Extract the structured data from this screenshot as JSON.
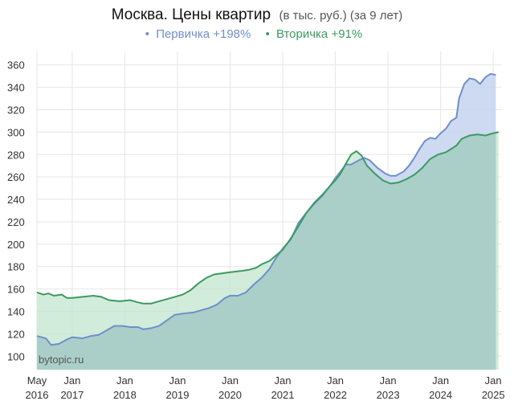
{
  "title": {
    "main": "Москва. Цены квартир",
    "sub": "(в тыс. руб.) (за 9 лет)"
  },
  "legend": [
    {
      "bullet": "•",
      "label": "Первичка +198%",
      "color": "#6f8fca"
    },
    {
      "bullet": "•",
      "label": "Вторичка +91%",
      "color": "#3c9a5f"
    }
  ],
  "watermark": "bytopic.ru",
  "colors": {
    "primary_line": "#6f8fca",
    "primary_fill": "#c5d3f0",
    "secondary_line": "#3c9a5f",
    "secondary_fill": "#c3e6cf",
    "overlap_fill": "#a9cfc8",
    "grid": "#e6e6e6"
  },
  "chart_data": {
    "type": "area",
    "title": "Москва. Цены квартир (в тыс. руб.) (за 9 лет)",
    "xlim": [
      2016.33,
      2025.15
    ],
    "ylim": [
      88,
      372
    ],
    "y_ticks": [
      100,
      120,
      140,
      160,
      180,
      200,
      220,
      240,
      260,
      280,
      300,
      320,
      340,
      360
    ],
    "x_ticks": [
      {
        "x": 2016.33,
        "top": "May",
        "bottom": "2016"
      },
      {
        "x": 2017.0,
        "top": "Jan",
        "bottom": "2017"
      },
      {
        "x": 2018.0,
        "top": "Jan",
        "bottom": "2018"
      },
      {
        "x": 2019.0,
        "top": "Jan",
        "bottom": "2019"
      },
      {
        "x": 2020.0,
        "top": "Jan",
        "bottom": "2020"
      },
      {
        "x": 2021.0,
        "top": "Jan",
        "bottom": "2021"
      },
      {
        "x": 2022.0,
        "top": "Jan",
        "bottom": "2022"
      },
      {
        "x": 2023.0,
        "top": "Jan",
        "bottom": "2023"
      },
      {
        "x": 2024.0,
        "top": "Jan",
        "bottom": "2024"
      },
      {
        "x": 2025.0,
        "top": "Jan",
        "bottom": "2025"
      }
    ],
    "grid": true,
    "legend_position": "top-center",
    "series": [
      {
        "name": "Первичка +198%",
        "points": [
          [
            2016.33,
            118
          ],
          [
            2016.5,
            116
          ],
          [
            2016.6,
            110
          ],
          [
            2016.75,
            111
          ],
          [
            2016.9,
            115
          ],
          [
            2017.0,
            117
          ],
          [
            2017.2,
            116
          ],
          [
            2017.35,
            118
          ],
          [
            2017.5,
            119
          ],
          [
            2017.65,
            123
          ],
          [
            2017.8,
            127
          ],
          [
            2017.95,
            127
          ],
          [
            2018.1,
            126
          ],
          [
            2018.25,
            126
          ],
          [
            2018.35,
            124
          ],
          [
            2018.5,
            125
          ],
          [
            2018.65,
            127
          ],
          [
            2018.8,
            132
          ],
          [
            2018.95,
            137
          ],
          [
            2019.1,
            138
          ],
          [
            2019.3,
            139
          ],
          [
            2019.45,
            141
          ],
          [
            2019.6,
            143
          ],
          [
            2019.75,
            146
          ],
          [
            2019.9,
            152
          ],
          [
            2020.0,
            154
          ],
          [
            2020.15,
            154
          ],
          [
            2020.3,
            157
          ],
          [
            2020.45,
            164
          ],
          [
            2020.6,
            170
          ],
          [
            2020.75,
            178
          ],
          [
            2020.85,
            186
          ],
          [
            2021.0,
            196
          ],
          [
            2021.15,
            204
          ],
          [
            2021.3,
            219
          ],
          [
            2021.45,
            228
          ],
          [
            2021.6,
            236
          ],
          [
            2021.75,
            243
          ],
          [
            2021.9,
            252
          ],
          [
            2022.0,
            259
          ],
          [
            2022.1,
            265
          ],
          [
            2022.2,
            271
          ],
          [
            2022.3,
            271
          ],
          [
            2022.45,
            275
          ],
          [
            2022.55,
            277
          ],
          [
            2022.65,
            275
          ],
          [
            2022.8,
            268
          ],
          [
            2022.95,
            263
          ],
          [
            2023.05,
            261
          ],
          [
            2023.15,
            261
          ],
          [
            2023.3,
            265
          ],
          [
            2023.4,
            270
          ],
          [
            2023.5,
            277
          ],
          [
            2023.6,
            285
          ],
          [
            2023.7,
            292
          ],
          [
            2023.8,
            295
          ],
          [
            2023.9,
            294
          ],
          [
            2024.0,
            299
          ],
          [
            2024.1,
            303
          ],
          [
            2024.2,
            310
          ],
          [
            2024.3,
            313
          ],
          [
            2024.35,
            330
          ],
          [
            2024.45,
            343
          ],
          [
            2024.55,
            348
          ],
          [
            2024.65,
            347
          ],
          [
            2024.75,
            343
          ],
          [
            2024.85,
            349
          ],
          [
            2024.95,
            352
          ],
          [
            2025.05,
            351
          ]
        ]
      },
      {
        "name": "Вторичка +91%",
        "points": [
          [
            2016.33,
            157
          ],
          [
            2016.45,
            155
          ],
          [
            2016.55,
            156
          ],
          [
            2016.65,
            154
          ],
          [
            2016.8,
            155
          ],
          [
            2016.9,
            152
          ],
          [
            2017.0,
            152
          ],
          [
            2017.2,
            153
          ],
          [
            2017.4,
            154
          ],
          [
            2017.55,
            153
          ],
          [
            2017.7,
            150
          ],
          [
            2017.9,
            149
          ],
          [
            2018.1,
            150
          ],
          [
            2018.25,
            148
          ],
          [
            2018.35,
            147
          ],
          [
            2018.5,
            147
          ],
          [
            2018.65,
            149
          ],
          [
            2018.8,
            151
          ],
          [
            2018.95,
            153
          ],
          [
            2019.1,
            155
          ],
          [
            2019.25,
            159
          ],
          [
            2019.4,
            165
          ],
          [
            2019.55,
            170
          ],
          [
            2019.7,
            173
          ],
          [
            2019.85,
            174
          ],
          [
            2020.0,
            175
          ],
          [
            2020.2,
            176
          ],
          [
            2020.35,
            177
          ],
          [
            2020.5,
            179
          ],
          [
            2020.6,
            182
          ],
          [
            2020.75,
            185
          ],
          [
            2020.9,
            191
          ],
          [
            2021.0,
            195
          ],
          [
            2021.15,
            205
          ],
          [
            2021.3,
            216
          ],
          [
            2021.45,
            228
          ],
          [
            2021.6,
            237
          ],
          [
            2021.75,
            244
          ],
          [
            2021.9,
            252
          ],
          [
            2022.0,
            257
          ],
          [
            2022.1,
            263
          ],
          [
            2022.2,
            272
          ],
          [
            2022.3,
            280
          ],
          [
            2022.4,
            283
          ],
          [
            2022.5,
            279
          ],
          [
            2022.6,
            270
          ],
          [
            2022.75,
            263
          ],
          [
            2022.9,
            257
          ],
          [
            2023.05,
            254
          ],
          [
            2023.2,
            255
          ],
          [
            2023.35,
            258
          ],
          [
            2023.5,
            262
          ],
          [
            2023.65,
            268
          ],
          [
            2023.8,
            276
          ],
          [
            2023.95,
            280
          ],
          [
            2024.1,
            282
          ],
          [
            2024.2,
            285
          ],
          [
            2024.3,
            288
          ],
          [
            2024.4,
            294
          ],
          [
            2024.55,
            297
          ],
          [
            2024.7,
            298
          ],
          [
            2024.85,
            297
          ],
          [
            2025.0,
            299
          ],
          [
            2025.1,
            300
          ]
        ]
      }
    ]
  }
}
